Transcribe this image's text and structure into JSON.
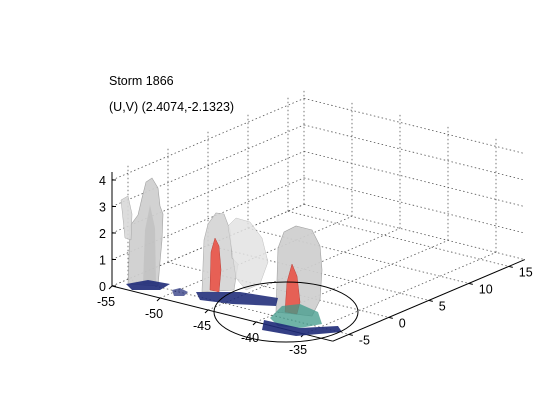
{
  "chart_data": {
    "type": "other",
    "title": "Storm 1866",
    "subtitle": "(U,V) (2.4074,-2.1323)",
    "x_ticks": [
      "-55",
      "-50",
      "-45",
      "-40",
      "-35"
    ],
    "y_ticks": [
      "-5",
      "0",
      "5",
      "10",
      "15"
    ],
    "z_ticks": [
      "0",
      "1",
      "2",
      "3",
      "4"
    ],
    "xlim": [
      -55,
      -32
    ],
    "ylim": [
      -7,
      17
    ],
    "zlim": [
      0,
      4.3
    ],
    "grid": true,
    "colors": {
      "isosurface_low": "#c8c8c8",
      "isosurface_high": "#e85a4f",
      "base_layer": "#1e2a78",
      "base_mid": "#3f9a8a",
      "ring": "#000000"
    }
  }
}
